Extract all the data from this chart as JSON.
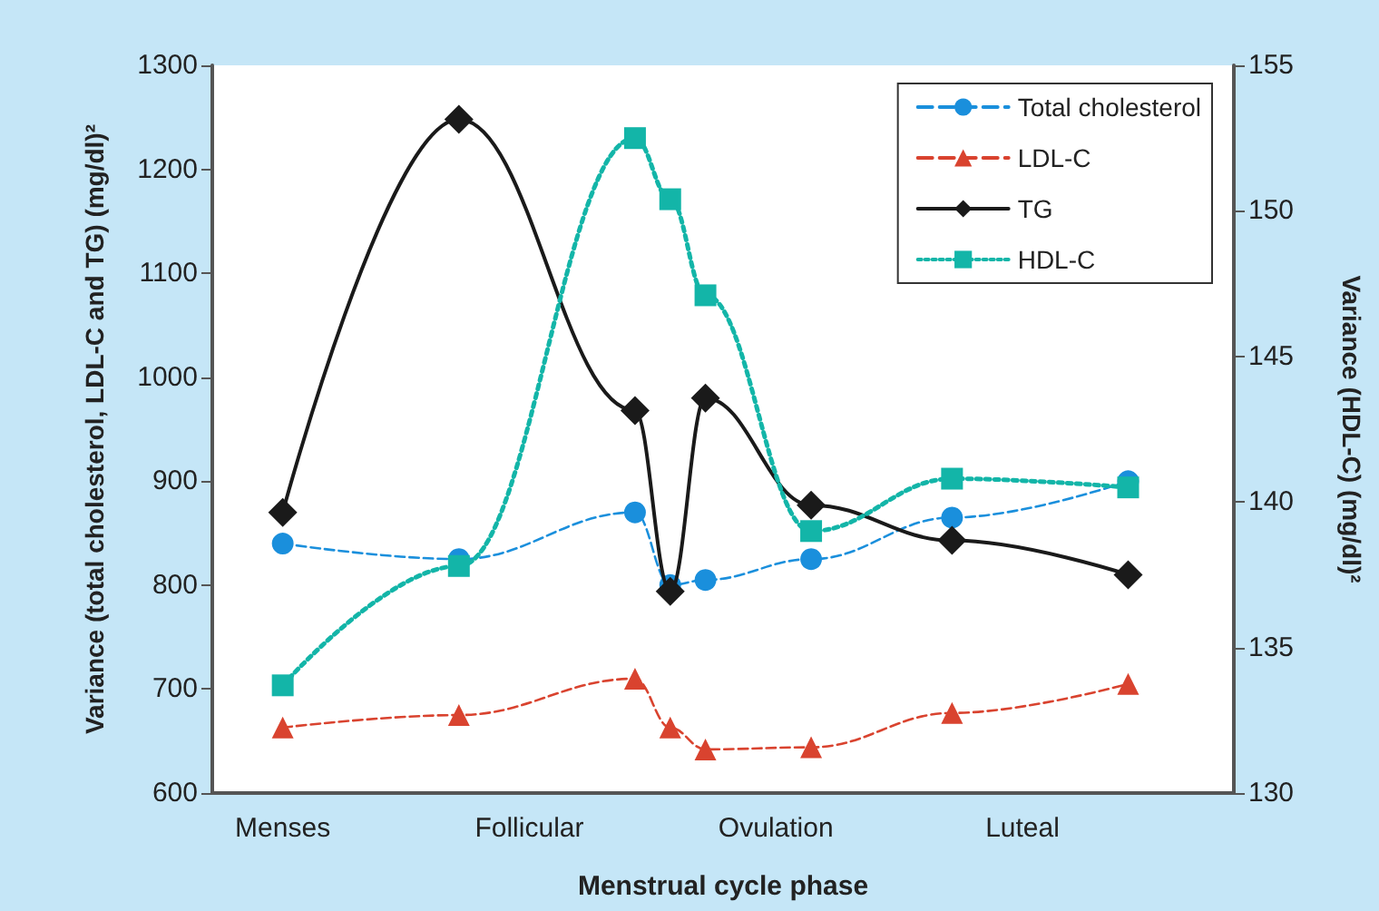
{
  "chart_data": {
    "type": "line",
    "xlabel": "Menstrual cycle phase",
    "ylabel": "Variance (total cholesterol, LDL-C and TG) (mg/dl)²",
    "y2label": "Variance (HDL-C) (mg/dl)²",
    "categories": [
      null,
      null,
      "Menses",
      null,
      null,
      null,
      null,
      null,
      null,
      "Follicular",
      null,
      null,
      null,
      null,
      null,
      null,
      "Ovulation",
      null,
      null,
      null,
      null,
      null,
      null,
      "Luteal",
      null,
      null,
      null,
      null,
      null,
      null
    ],
    "ylim": [
      600,
      1300
    ],
    "yticks": [
      600,
      700,
      800,
      900,
      1000,
      1100,
      1200,
      1300
    ],
    "y2lim": [
      130,
      155
    ],
    "y2ticks": [
      130,
      135,
      140,
      145,
      150,
      155
    ],
    "legend": "top right",
    "series": [
      {
        "name": "Total cholesterol",
        "color": "#1a8fdc",
        "marker": "circle",
        "line_style": "dashed",
        "values": [
          null,
          null,
          840,
          null,
          null,
          null,
          null,
          825,
          null,
          null,
          null,
          null,
          870,
          800,
          805,
          null,
          null,
          825,
          null,
          null,
          null,
          865,
          null,
          null,
          null,
          null,
          900,
          null,
          null,
          null
        ]
      },
      {
        "name": "LDL-C",
        "color": "#d9432f",
        "marker": "triangle",
        "line_style": "dashed",
        "values": [
          null,
          null,
          663,
          null,
          null,
          null,
          null,
          675,
          null,
          null,
          null,
          null,
          710,
          663,
          642,
          null,
          null,
          644,
          null,
          null,
          null,
          677,
          null,
          null,
          null,
          null,
          705,
          null,
          null,
          null
        ]
      },
      {
        "name": "TG",
        "color": "#1a1a1a",
        "marker": "diamond",
        "line_style": "solid",
        "values": [
          null,
          null,
          870,
          null,
          null,
          null,
          null,
          1248,
          null,
          null,
          null,
          null,
          968,
          794,
          980,
          null,
          null,
          877,
          null,
          null,
          null,
          843,
          null,
          null,
          null,
          null,
          810,
          null,
          null,
          null
        ]
      },
      {
        "name": "HDL-C",
        "color": "#13b5a8",
        "marker": "square",
        "line_style": "dotted",
        "axis": "y2",
        "values": [
          null,
          null,
          133.7,
          null,
          null,
          null,
          null,
          137.8,
          null,
          null,
          null,
          null,
          152.5,
          150.4,
          147.1,
          null,
          null,
          139.0,
          null,
          null,
          null,
          140.8,
          null,
          null,
          null,
          null,
          140.5,
          null,
          null,
          null
        ]
      }
    ]
  }
}
